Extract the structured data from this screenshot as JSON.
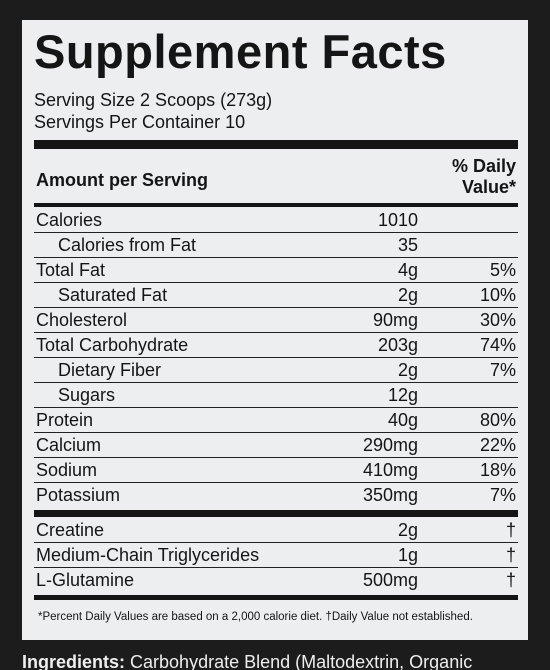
{
  "title": "Supplement Facts",
  "serving_size": "Serving Size 2 Scoops (273g)",
  "servings_per_container": "Servings Per Container 10",
  "header": {
    "amount": "Amount per Serving",
    "daily_value_1": "% Daily",
    "daily_value_2": "Value*"
  },
  "nutrients": [
    [
      "Calories",
      "1010",
      ""
    ],
    [
      "Calories from Fat",
      "35",
      ""
    ],
    [
      "Total Fat",
      "4g",
      "5%"
    ],
    [
      "Saturated Fat",
      "2g",
      "10%"
    ],
    [
      "Cholesterol",
      "90mg",
      "30%"
    ],
    [
      "Total Carbohydrate",
      "203g",
      "74%"
    ],
    [
      "Dietary Fiber",
      "2g",
      "7%"
    ],
    [
      "Sugars",
      "12g",
      ""
    ],
    [
      "Protein",
      "40g",
      "80%"
    ],
    [
      "Calcium",
      "290mg",
      "22%"
    ],
    [
      "Sodium",
      "410mg",
      "18%"
    ],
    [
      "Potassium",
      "350mg",
      "7%"
    ]
  ],
  "other": [
    [
      "Creatine",
      "2g",
      "†"
    ],
    [
      "Medium-Chain Triglycerides",
      "1g",
      "†"
    ],
    [
      "L-Glutamine",
      "500mg",
      "†"
    ]
  ],
  "footnote": "*Percent Daily Values are based on a 2,000 calorie diet. †Daily Value not established.",
  "ingredients_label": "Ingredients:",
  "ingredients_text": "Carbohydrate Blend (Maltodextrin, Organic"
}
